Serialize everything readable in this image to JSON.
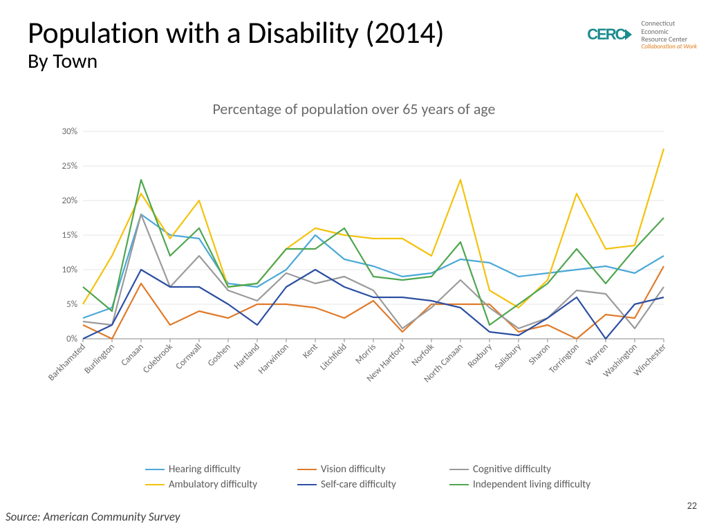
{
  "title": "Population with a Disability (2014)",
  "subtitle": "By Town",
  "chart_title": "Percentage of population over 65 years of age",
  "source": "Source: American Community Survey",
  "page_number": "22",
  "logo": {
    "text": "CERC",
    "name_line1": "Connecticut",
    "name_line2": "Economic",
    "name_line3": "Resource Center",
    "tagline": "Collaboration at Work",
    "color": "#1a8b8f",
    "tagline_color": "#e07a1a"
  },
  "chart": {
    "type": "line",
    "background_color": "#ffffff",
    "grid_color": "#e6e6e6",
    "axis_color": "#8a8a8a",
    "tick_label_color": "#6a6a6a",
    "tick_fontsize": 13,
    "xlabel_fontsize": 13,
    "categories": [
      "Barkhamsted",
      "Burlington",
      "Canaan",
      "Colebrook",
      "Cornwall",
      "Goshen",
      "Hartland",
      "Harwinton",
      "Kent",
      "Litchfield",
      "Morris",
      "New Hartford",
      "Norfolk",
      "North Canaan",
      "Roxbury",
      "Salisbury",
      "Sharon",
      "Torrington",
      "Warren",
      "Washington",
      "Winchester"
    ],
    "y": {
      "min": 0,
      "max": 30,
      "step": 5,
      "suffix": "%"
    },
    "line_width": 2.2,
    "series": [
      {
        "name": "Hearing difficulty",
        "color": "#4aa8d8",
        "values": [
          3.0,
          4.5,
          18.0,
          15.0,
          14.5,
          8.0,
          7.5,
          10.0,
          15.0,
          11.5,
          10.5,
          9.0,
          9.5,
          11.5,
          11.0,
          9.0,
          9.5,
          10.0,
          10.5,
          9.5,
          12.0
        ]
      },
      {
        "name": "Vision difficulty",
        "color": "#e07a2a",
        "values": [
          2.0,
          0.0,
          8.0,
          2.0,
          4.0,
          3.0,
          5.0,
          5.0,
          4.5,
          3.0,
          5.5,
          1.0,
          5.0,
          5.0,
          5.0,
          1.0,
          2.0,
          0.0,
          3.5,
          3.0,
          10.5
        ]
      },
      {
        "name": "Cognitive difficulty",
        "color": "#9a9a9a",
        "values": [
          2.5,
          2.0,
          18.0,
          7.5,
          12.0,
          7.0,
          5.5,
          9.5,
          8.0,
          9.0,
          7.0,
          1.5,
          4.5,
          8.5,
          4.5,
          1.5,
          3.0,
          7.0,
          6.5,
          1.5,
          7.5
        ]
      },
      {
        "name": "Ambulatory difficulty",
        "color": "#f4c20d",
        "values": [
          5.0,
          12.0,
          21.0,
          14.5,
          20.0,
          7.5,
          8.0,
          13.0,
          16.0,
          15.0,
          14.5,
          14.5,
          12.0,
          23.0,
          7.0,
          4.5,
          8.5,
          21.0,
          13.0,
          13.5,
          27.5
        ]
      },
      {
        "name": "Self-care difficulty",
        "color": "#2c4fa2",
        "values": [
          0.0,
          2.0,
          10.0,
          7.5,
          7.5,
          5.0,
          2.0,
          7.5,
          10.0,
          7.5,
          6.0,
          6.0,
          5.5,
          4.5,
          1.0,
          0.5,
          3.0,
          6.0,
          0.0,
          5.0,
          6.0
        ]
      },
      {
        "name": "Independent living difficulty",
        "color": "#4fa64f",
        "values": [
          7.5,
          4.0,
          23.0,
          12.0,
          16.0,
          7.5,
          8.0,
          13.0,
          13.0,
          16.0,
          9.0,
          8.5,
          9.0,
          14.0,
          2.0,
          5.0,
          8.0,
          13.0,
          8.0,
          13.0,
          17.5
        ]
      }
    ]
  }
}
